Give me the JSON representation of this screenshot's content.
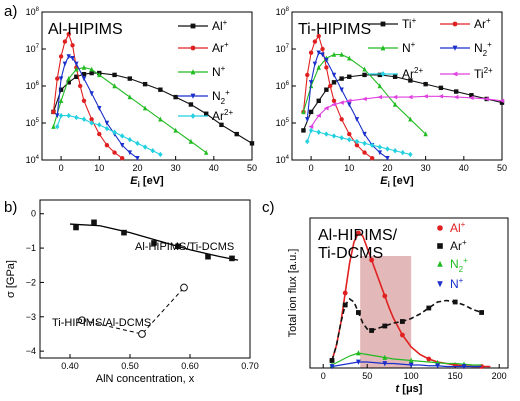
{
  "panel_labels": [
    "a)",
    "b)",
    "c)"
  ],
  "chart_data": [
    {
      "id": "a-left",
      "type": "line",
      "title": "Al-HIPIMS",
      "xlabel": "E_i [eV]",
      "xlim": [
        -5,
        50
      ],
      "ylim_log10": [
        4,
        8
      ],
      "y_scale": "log",
      "xticks": [
        0,
        10,
        20,
        30,
        40,
        50
      ],
      "yticks_exp": [
        4,
        5,
        6,
        7,
        8
      ],
      "legend_placement": "right",
      "series": [
        {
          "name": "Al+",
          "color": "#111111",
          "marker": "square",
          "x": [
            -2,
            0,
            2,
            4,
            6,
            8,
            10,
            14,
            18,
            22,
            26,
            30,
            34,
            38,
            42,
            46,
            50
          ],
          "y_exp": [
            5.3,
            5.9,
            6.1,
            6.25,
            6.32,
            6.35,
            6.35,
            6.3,
            6.2,
            6.05,
            5.9,
            5.7,
            5.5,
            5.25,
            4.95,
            4.7,
            4.45
          ]
        },
        {
          "name": "Ar+",
          "color": "#e02020",
          "marker": "circle",
          "x": [
            -2,
            -1,
            0,
            1,
            2,
            3,
            4,
            5,
            6,
            8,
            10,
            12,
            14,
            16
          ],
          "y_exp": [
            5.3,
            6.2,
            6.8,
            7.2,
            7.4,
            7.1,
            6.5,
            6.0,
            5.6,
            5.1,
            4.7,
            4.4,
            4.2,
            4.05
          ]
        },
        {
          "name": "N+",
          "color": "#22bb22",
          "marker": "triangle-up",
          "x": [
            -2,
            0,
            2,
            4,
            6,
            8,
            10,
            14,
            18,
            22,
            26,
            30,
            34,
            38
          ],
          "y_exp": [
            4.9,
            5.6,
            6.2,
            6.45,
            6.5,
            6.45,
            6.3,
            6.0,
            5.7,
            5.4,
            5.1,
            4.8,
            4.5,
            4.2
          ]
        },
        {
          "name": "N2+",
          "color": "#1a2fcc",
          "marker": "triangle-down",
          "x": [
            -1,
            0,
            1,
            2,
            3,
            4,
            6,
            8,
            10,
            12,
            14,
            16,
            18,
            20
          ],
          "y_exp": [
            5.2,
            6.2,
            6.6,
            6.8,
            6.75,
            6.6,
            6.2,
            5.8,
            5.4,
            5.0,
            4.7,
            4.4,
            4.2,
            4.05
          ]
        },
        {
          "name": "Ar2+",
          "color": "#22d0e0",
          "marker": "diamond",
          "x": [
            -1,
            0,
            2,
            4,
            6,
            8,
            10,
            12,
            14,
            16,
            18,
            20,
            22,
            24,
            26
          ],
          "y_exp": [
            4.9,
            5.2,
            5.2,
            5.15,
            5.1,
            5.0,
            4.95,
            4.85,
            4.75,
            4.65,
            4.55,
            4.45,
            4.35,
            4.25,
            4.15
          ]
        }
      ]
    },
    {
      "id": "a-right",
      "type": "line",
      "title": "Ti-HIPIMS",
      "xlabel": "E_i [eV]",
      "xlim": [
        -5,
        50
      ],
      "ylim_log10": [
        4,
        8
      ],
      "y_scale": "log",
      "xticks": [
        0,
        10,
        20,
        30,
        40,
        50
      ],
      "yticks_exp": [
        4,
        5,
        6,
        7,
        8
      ],
      "legend_placement": "top",
      "series": [
        {
          "name": "Ti+",
          "color": "#111111",
          "marker": "square",
          "x": [
            -2,
            0,
            2,
            4,
            6,
            8,
            10,
            14,
            18,
            22,
            26,
            30,
            34,
            38,
            42,
            46,
            50
          ],
          "y_exp": [
            4.8,
            5.3,
            5.6,
            5.9,
            6.1,
            6.2,
            6.25,
            6.3,
            6.3,
            6.25,
            6.15,
            6.05,
            5.95,
            5.85,
            5.75,
            5.65,
            5.55
          ]
        },
        {
          "name": "Ar+",
          "color": "#e02020",
          "marker": "circle",
          "x": [
            -2,
            -1,
            0,
            1,
            2,
            3,
            4,
            5,
            6,
            8,
            10,
            12,
            14,
            16
          ],
          "y_exp": [
            5.3,
            6.3,
            6.9,
            7.2,
            7.35,
            7.0,
            6.5,
            6.0,
            5.6,
            5.1,
            4.7,
            4.4,
            4.2,
            4.05
          ]
        },
        {
          "name": "N+",
          "color": "#22bb22",
          "marker": "triangle-up",
          "x": [
            -2,
            0,
            2,
            4,
            6,
            8,
            10,
            14,
            18,
            22,
            26,
            30
          ],
          "y_exp": [
            5.3,
            6.0,
            6.5,
            6.75,
            6.85,
            6.85,
            6.75,
            6.45,
            6.0,
            5.5,
            5.1,
            4.7
          ]
        },
        {
          "name": "N2+",
          "color": "#1a2fcc",
          "marker": "triangle-down",
          "x": [
            -1,
            0,
            1,
            2,
            3,
            4,
            6,
            8,
            10,
            12,
            14,
            16,
            18,
            20
          ],
          "y_exp": [
            5.1,
            6.1,
            6.6,
            6.9,
            6.85,
            6.7,
            6.3,
            5.9,
            5.5,
            5.1,
            4.7,
            4.4,
            4.2,
            4.05
          ]
        },
        {
          "name": "Ar2+",
          "color": "#22d0e0",
          "marker": "diamond",
          "x": [
            -1,
            0,
            2,
            4,
            6,
            8,
            10,
            12,
            14,
            16,
            18,
            20,
            22,
            24,
            26
          ],
          "y_exp": [
            4.5,
            4.8,
            4.75,
            4.7,
            4.65,
            4.6,
            4.55,
            4.5,
            4.45,
            4.4,
            4.35,
            4.3,
            4.25,
            4.2,
            4.15
          ]
        },
        {
          "name": "Ti2+",
          "color": "#e040e0",
          "marker": "triangle-left",
          "x": [
            0,
            2,
            4,
            6,
            8,
            10,
            14,
            18,
            22,
            26,
            30,
            34,
            38,
            42,
            46,
            50
          ],
          "y_exp": [
            4.9,
            5.2,
            5.4,
            5.5,
            5.55,
            5.6,
            5.65,
            5.7,
            5.7,
            5.7,
            5.72,
            5.72,
            5.7,
            5.68,
            5.65,
            5.6
          ]
        }
      ]
    },
    {
      "id": "b",
      "type": "scatter",
      "xlabel": "AlN concentration, x",
      "ylabel": "σ [GPa]",
      "xlim": [
        0.35,
        0.7
      ],
      "ylim": [
        -4.2,
        0.4
      ],
      "xticks": [
        0.4,
        0.5,
        0.6,
        0.7
      ],
      "yticks": [
        0,
        -1,
        -2,
        -3,
        -4
      ],
      "series": [
        {
          "name": "Al-HIPIMS/Ti-DCMS",
          "color": "#111111",
          "marker": "filled-square",
          "x": [
            0.41,
            0.44,
            0.49,
            0.54,
            0.58,
            0.63,
            0.67
          ],
          "y": [
            -0.4,
            -0.25,
            -0.55,
            -0.85,
            -0.95,
            -1.25,
            -1.3
          ]
        },
        {
          "name": "Ti-HIPIMS/Al-DCMS",
          "color": "#111111",
          "marker": "open-circle",
          "x": [
            0.42,
            0.52,
            0.59
          ],
          "y": [
            -3.1,
            -3.5,
            -2.15
          ]
        }
      ],
      "fit_solid": {
        "x": [
          0.4,
          0.45,
          0.5,
          0.55,
          0.6,
          0.65,
          0.68
        ],
        "y": [
          -0.3,
          -0.35,
          -0.55,
          -0.8,
          -1.05,
          -1.25,
          -1.35
        ]
      },
      "fit_dashed": {
        "x": [
          0.42,
          0.52,
          0.59
        ],
        "y": [
          -3.1,
          -3.5,
          -2.15
        ]
      }
    },
    {
      "id": "c",
      "type": "line",
      "title_lines": [
        "Al-HIPIMS/",
        "Ti-DCMS"
      ],
      "xlabel": "t [μs]",
      "ylabel": "Total ion flux [a.u.]",
      "xlim": [
        -15,
        210
      ],
      "ylim": [
        0,
        1.0
      ],
      "xticks": [
        0,
        50,
        100,
        150,
        200
      ],
      "shaded_range": [
        42,
        100
      ],
      "legend_placement": "top-right",
      "series": [
        {
          "name": "Al+",
          "color": "#e02020",
          "marker": "circle",
          "x": [
            10,
            15,
            20,
            25,
            30,
            35,
            40,
            45,
            50,
            55,
            60,
            65,
            70,
            75,
            80,
            90,
            100,
            110,
            120,
            130,
            140,
            150,
            160,
            170,
            180,
            190
          ],
          "y": [
            0.05,
            0.15,
            0.3,
            0.5,
            0.7,
            0.84,
            0.9,
            0.88,
            0.8,
            0.72,
            0.64,
            0.56,
            0.48,
            0.4,
            0.33,
            0.22,
            0.14,
            0.09,
            0.06,
            0.04,
            0.03,
            0.02,
            0.015,
            0.01,
            0.01,
            0.01
          ]
        },
        {
          "name": "Ar+",
          "color": "#111111",
          "marker": "square",
          "x": [
            10,
            15,
            20,
            25,
            30,
            35,
            40,
            45,
            50,
            55,
            60,
            65,
            70,
            75,
            80,
            90,
            100,
            110,
            120,
            130,
            140,
            150,
            160,
            170,
            180
          ],
          "y": [
            0.05,
            0.15,
            0.3,
            0.42,
            0.46,
            0.44,
            0.37,
            0.3,
            0.26,
            0.25,
            0.26,
            0.27,
            0.28,
            0.29,
            0.3,
            0.31,
            0.33,
            0.36,
            0.4,
            0.44,
            0.45,
            0.44,
            0.42,
            0.39,
            0.37
          ]
        },
        {
          "name": "N2+",
          "color": "#22bb22",
          "marker": "triangle-up",
          "x": [
            10,
            20,
            30,
            40,
            50,
            60,
            70,
            80,
            90,
            100,
            110,
            120,
            130,
            140,
            150,
            160,
            170,
            180
          ],
          "y": [
            0.02,
            0.05,
            0.08,
            0.1,
            0.09,
            0.08,
            0.07,
            0.06,
            0.055,
            0.05,
            0.045,
            0.04,
            0.035,
            0.03,
            0.03,
            0.025,
            0.02,
            0.02
          ]
        },
        {
          "name": "N+",
          "color": "#1a2fcc",
          "marker": "triangle-down",
          "x": [
            10,
            20,
            30,
            40,
            50,
            60,
            70,
            80,
            90,
            100,
            110,
            120,
            130,
            140,
            150,
            160,
            170,
            180
          ],
          "y": [
            0.01,
            0.02,
            0.03,
            0.04,
            0.04,
            0.035,
            0.03,
            0.03,
            0.025,
            0.02,
            0.02,
            0.015,
            0.015,
            0.01,
            0.01,
            0.01,
            0.01,
            0.01
          ]
        }
      ]
    }
  ]
}
